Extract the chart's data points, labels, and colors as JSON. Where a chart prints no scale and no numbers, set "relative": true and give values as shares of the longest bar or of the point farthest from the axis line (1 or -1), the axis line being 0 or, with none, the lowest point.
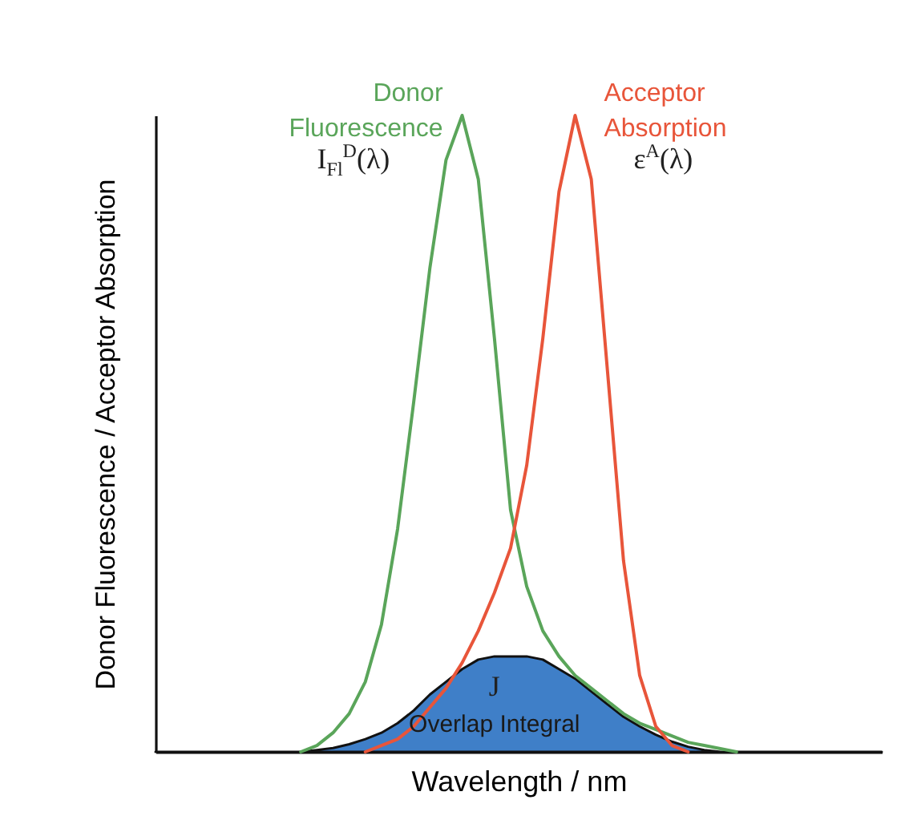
{
  "chart_data": {
    "type": "line",
    "relative": true,
    "xlabel": "Wavelength / nm",
    "ylabel": "Donor Fluorescence / Acceptor Absorption",
    "categories": [
      null,
      null,
      null,
      null,
      null,
      null,
      null,
      null,
      null,
      null,
      null,
      null,
      null,
      null,
      null,
      null,
      null,
      null,
      null,
      null,
      null,
      null,
      null,
      null,
      null,
      null,
      null,
      null,
      null,
      null,
      null,
      null,
      null,
      null,
      null,
      null,
      null,
      null,
      null,
      null,
      null,
      null,
      null,
      null,
      null,
      null
    ],
    "series": [
      {
        "name": "Overlap Integral",
        "type": "area",
        "color": "#3f7fc8",
        "values": [
          0,
          0,
          0,
          0,
          0,
          0,
          0,
          0,
          0,
          0,
          0.003,
          0.006,
          0.012,
          0.02,
          0.03,
          0.045,
          0.065,
          0.09,
          0.11,
          0.13,
          0.145,
          0.15,
          0.15,
          0.15,
          0.145,
          0.13,
          0.115,
          0.095,
          0.075,
          0.055,
          0.04,
          0.027,
          0.016,
          0.008,
          0.003,
          0,
          0,
          0,
          0,
          0,
          0,
          0,
          0,
          0,
          0,
          0
        ]
      },
      {
        "name": "Donor Fluorescence",
        "color": "#5aa55a",
        "values": [
          null,
          null,
          null,
          null,
          null,
          null,
          null,
          null,
          null,
          0,
          0.01,
          0.03,
          0.06,
          0.11,
          0.2,
          0.35,
          0.55,
          0.76,
          0.93,
          1,
          0.9,
          0.65,
          0.38,
          0.26,
          0.19,
          0.15,
          0.12,
          0.1,
          0.08,
          0.06,
          0.045,
          0.035,
          0.025,
          0.015,
          0.01,
          0.005,
          0,
          null,
          null,
          null,
          null,
          null,
          null,
          null,
          null,
          null
        ]
      },
      {
        "name": "Acceptor Absorption",
        "color": "#e8553a",
        "values": [
          null,
          null,
          null,
          null,
          null,
          null,
          null,
          null,
          null,
          null,
          null,
          null,
          null,
          0,
          0.01,
          0.02,
          0.04,
          0.07,
          0.1,
          0.14,
          0.19,
          0.25,
          0.32,
          0.45,
          0.65,
          0.88,
          1,
          0.9,
          0.6,
          0.3,
          0.12,
          0.04,
          0.01,
          0,
          null,
          null,
          null,
          null,
          null,
          null,
          null,
          null,
          null,
          null,
          null,
          null
        ]
      }
    ],
    "annotations": [
      "I$_{Fl}$$^{D}$(λ)",
      "ε$^{A}$(λ)",
      "J"
    ]
  }
}
